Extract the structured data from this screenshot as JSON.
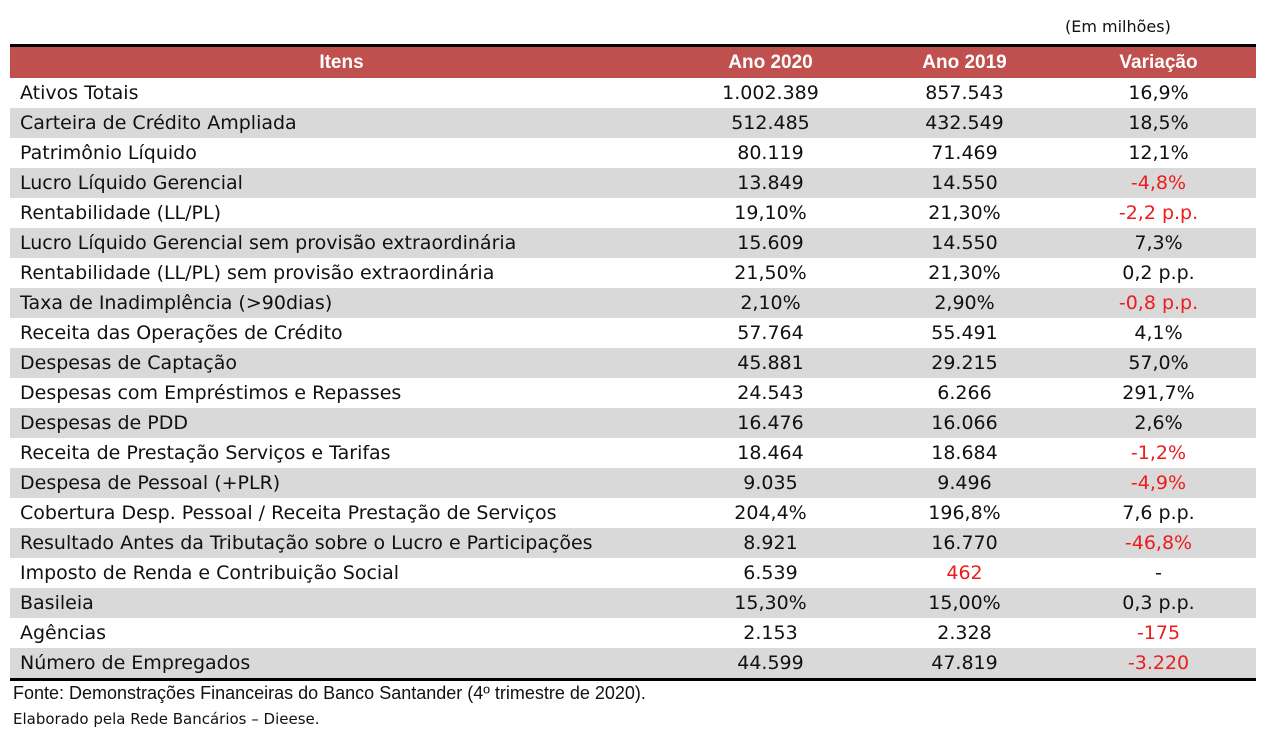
{
  "unit_note": "(Em milhões)",
  "table": {
    "headers": {
      "item": "Itens",
      "year_2020": "Ano 2020",
      "year_2019": "Ano 2019",
      "variation": "Variação"
    },
    "rows": [
      {
        "item": "Ativos Totais",
        "y2020": "1.002.389",
        "y2019": "857.543",
        "variation": "16,9%",
        "y2019_negative": false,
        "variation_negative": false
      },
      {
        "item": "Carteira de Crédito Ampliada",
        "y2020": "512.485",
        "y2019": "432.549",
        "variation": "18,5%",
        "y2019_negative": false,
        "variation_negative": false
      },
      {
        "item": "Patrimônio Líquido",
        "y2020": "80.119",
        "y2019": "71.469",
        "variation": "12,1%",
        "y2019_negative": false,
        "variation_negative": false
      },
      {
        "item": "Lucro Líquido Gerencial",
        "y2020": "13.849",
        "y2019": "14.550",
        "variation": "-4,8%",
        "y2019_negative": false,
        "variation_negative": true
      },
      {
        "item": "Rentabilidade (LL/PL)",
        "y2020": "19,10%",
        "y2019": "21,30%",
        "variation": "-2,2 p.p.",
        "y2019_negative": false,
        "variation_negative": true
      },
      {
        "item": "Lucro Líquido Gerencial sem provisão extraordinária",
        "y2020": "15.609",
        "y2019": "14.550",
        "variation": "7,3%",
        "y2019_negative": false,
        "variation_negative": false
      },
      {
        "item": "Rentabilidade (LL/PL) sem provisão extraordinária",
        "y2020": "21,50%",
        "y2019": "21,30%",
        "variation": "0,2 p.p.",
        "y2019_negative": false,
        "variation_negative": false
      },
      {
        "item": "Taxa de Inadimplência (>90dias)",
        "y2020": "2,10%",
        "y2019": "2,90%",
        "variation": "-0,8 p.p.",
        "y2019_negative": false,
        "variation_negative": true
      },
      {
        "item": "Receita das Operações de Crédito",
        "y2020": "57.764",
        "y2019": "55.491",
        "variation": "4,1%",
        "y2019_negative": false,
        "variation_negative": false
      },
      {
        "item": "Despesas de Captação",
        "y2020": "45.881",
        "y2019": "29.215",
        "variation": "57,0%",
        "y2019_negative": false,
        "variation_negative": false
      },
      {
        "item": "Despesas com Empréstimos e Repasses",
        "y2020": "24.543",
        "y2019": "6.266",
        "variation": "291,7%",
        "y2019_negative": false,
        "variation_negative": false
      },
      {
        "item": "Despesas de PDD",
        "y2020": "16.476",
        "y2019": "16.066",
        "variation": "2,6%",
        "y2019_negative": false,
        "variation_negative": false
      },
      {
        "item": "Receita de Prestação Serviços e Tarifas",
        "y2020": "18.464",
        "y2019": "18.684",
        "variation": "-1,2%",
        "y2019_negative": false,
        "variation_negative": true
      },
      {
        "item": "Despesa de Pessoal (+PLR)",
        "y2020": "9.035",
        "y2019": "9.496",
        "variation": "-4,9%",
        "y2019_negative": false,
        "variation_negative": true
      },
      {
        "item": "Cobertura Desp. Pessoal / Receita Prestação de Serviços",
        "y2020": "204,4%",
        "y2019": "196,8%",
        "variation": "7,6 p.p.",
        "y2019_negative": false,
        "variation_negative": false
      },
      {
        "item": "Resultado Antes da Tributação sobre o Lucro e Participações",
        "y2020": "8.921",
        "y2019": "16.770",
        "variation": "-46,8%",
        "y2019_negative": false,
        "variation_negative": true
      },
      {
        "item": "Imposto de Renda e Contribuição Social",
        "y2020": "6.539",
        "y2019": "462",
        "variation": "-",
        "y2019_negative": true,
        "variation_negative": false
      },
      {
        "item": "Basileia",
        "y2020": "15,30%",
        "y2019": "15,00%",
        "variation": "0,3 p.p.",
        "y2019_negative": false,
        "variation_negative": false
      },
      {
        "item": "Agências",
        "y2020": "2.153",
        "y2019": "2.328",
        "variation": "-175",
        "y2019_negative": false,
        "variation_negative": true
      },
      {
        "item": "Número de Empregados",
        "y2020": "44.599",
        "y2019": "47.819",
        "variation": "-3.220",
        "y2019_negative": false,
        "variation_negative": true
      }
    ]
  },
  "source_note": "Fonte: Demonstrações Financeiras do Banco Santander (4º trimestre de 2020).",
  "author_note": "Elaborado pela Rede Bancários – Dieese.",
  "colors": {
    "header_bg": "#c0504d",
    "header_text": "#ffffff",
    "stripe_bg": "#d9d9d9",
    "negative_text": "#ee1c1c"
  }
}
